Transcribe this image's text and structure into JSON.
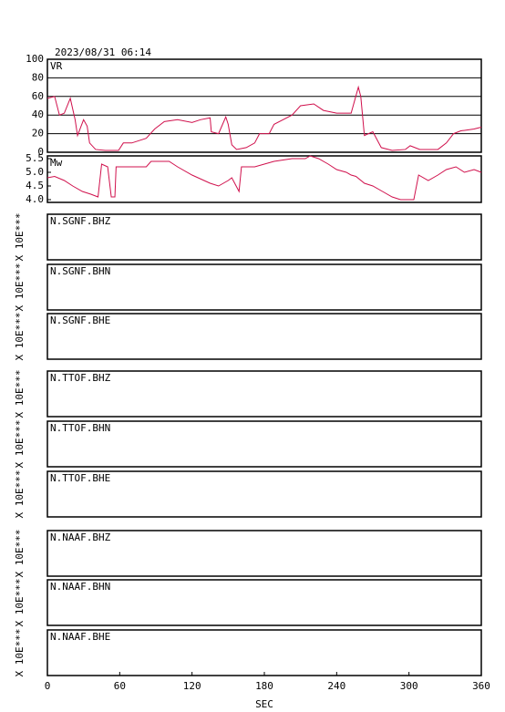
{
  "chart_data": [
    {
      "type": "line",
      "title": "2023/08/31 06:14",
      "label": "VR",
      "color": "#d0104c",
      "xlim": [
        0,
        360
      ],
      "ylim": [
        0,
        100
      ],
      "yticks": [
        0,
        20,
        40,
        60,
        80,
        100
      ],
      "grid": true,
      "x": [
        0,
        6,
        10,
        14,
        19,
        23,
        25,
        30,
        33,
        35,
        40,
        48,
        59,
        63,
        70,
        82,
        89,
        97,
        108,
        120,
        127,
        135,
        136,
        142,
        148,
        150,
        153,
        157,
        165,
        172,
        176,
        184,
        188,
        203,
        210,
        221,
        229,
        240,
        252,
        258,
        260,
        263,
        270,
        277,
        286,
        297,
        301,
        309,
        316,
        324,
        331,
        337,
        343,
        354,
        360
      ],
      "values": [
        58,
        60,
        40,
        42,
        58,
        35,
        18,
        35,
        28,
        10,
        3,
        2,
        2,
        10,
        10,
        15,
        25,
        33,
        35,
        32,
        35,
        37,
        22,
        20,
        38,
        30,
        8,
        3,
        5,
        10,
        20,
        20,
        30,
        40,
        50,
        52,
        45,
        42,
        42,
        70,
        60,
        18,
        22,
        5,
        2,
        3,
        7,
        3,
        3,
        3,
        10,
        20,
        23,
        25,
        27
      ]
    },
    {
      "type": "line",
      "label": "Mw",
      "color": "#d0104c",
      "xlim": [
        0,
        360
      ],
      "ylim": [
        3.9,
        5.6
      ],
      "yticks": [
        {
          "value": 4,
          "label": "4.0"
        },
        4.5,
        {
          "value": 5,
          "label": "5.0"
        },
        5.5
      ],
      "grid": false,
      "x": [
        0,
        6,
        14,
        21,
        29,
        36,
        42,
        45,
        50,
        53,
        56,
        57,
        63,
        82,
        86,
        101,
        108,
        120,
        135,
        142,
        150,
        153,
        159,
        161,
        172,
        180,
        188,
        203,
        214,
        218,
        225,
        233,
        240,
        248,
        252,
        256,
        263,
        270,
        278,
        286,
        293,
        304,
        308,
        316,
        324,
        331,
        339,
        346,
        354,
        360
      ],
      "values": [
        4.8,
        4.85,
        4.7,
        4.5,
        4.3,
        4.2,
        4.1,
        5.3,
        5.2,
        4.1,
        4.1,
        5.2,
        5.2,
        5.2,
        5.4,
        5.4,
        5.2,
        4.9,
        4.6,
        4.5,
        4.7,
        4.8,
        4.3,
        5.2,
        5.2,
        5.3,
        5.4,
        5.5,
        5.5,
        5.6,
        5.5,
        5.3,
        5.1,
        5.0,
        4.9,
        4.85,
        4.6,
        4.5,
        4.3,
        4.1,
        4.0,
        4.0,
        4.9,
        4.7,
        4.9,
        5.1,
        5.2,
        5.0,
        5.1,
        5.0
      ]
    },
    {
      "type": "waveform",
      "xlim": [
        0,
        360
      ],
      "xticks": [
        0,
        60,
        120,
        180,
        240,
        300,
        360
      ],
      "xlabel": "SEC",
      "panels": [
        {
          "label": "N.SGNF.BHZ",
          "ylabel": "X 10E***"
        },
        {
          "label": "N.SGNF.BHN",
          "ylabel": "X 10E***"
        },
        {
          "label": "N.SGNF.BHE",
          "ylabel": "X 10E***"
        },
        {
          "label": "N.TTOF.BHZ",
          "ylabel": "X 10E***"
        },
        {
          "label": "N.TTOF.BHN",
          "ylabel": "X 10E***"
        },
        {
          "label": "N.TTOF.BHE",
          "ylabel": "X 10E***"
        },
        {
          "label": "N.NAAF.BHZ",
          "ylabel": "X 10E***"
        },
        {
          "label": "N.NAAF.BHN",
          "ylabel": "X 10E***"
        },
        {
          "label": "N.NAAF.BHE",
          "ylabel": "X 10E***"
        }
      ]
    }
  ]
}
